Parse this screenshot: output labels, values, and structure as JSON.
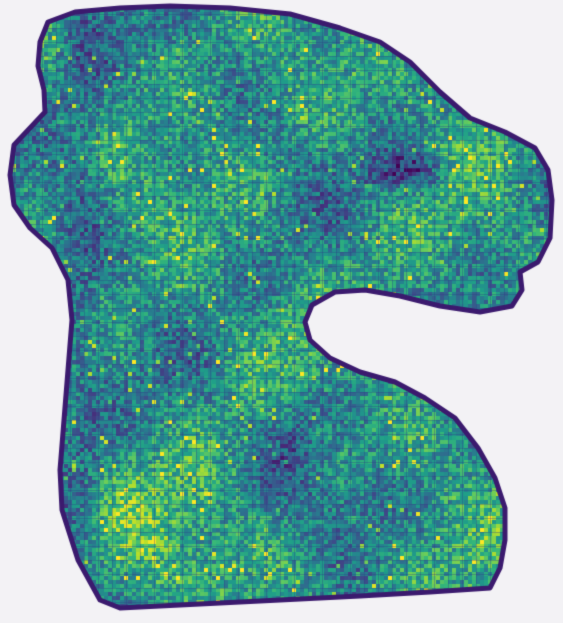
{
  "image": {
    "subject": "tissue-section-spatial-heatmap",
    "background_color": "#f3f2f5",
    "colormap": "viridis",
    "colormap_stops": [
      "#440154",
      "#482878",
      "#3e4a89",
      "#31688e",
      "#26828e",
      "#1f9e89",
      "#35b779",
      "#6ece58",
      "#b5de2b",
      "#fde725"
    ],
    "grid_line_color": "#2f3f86",
    "outline_color": "#3b1a6e"
  }
}
